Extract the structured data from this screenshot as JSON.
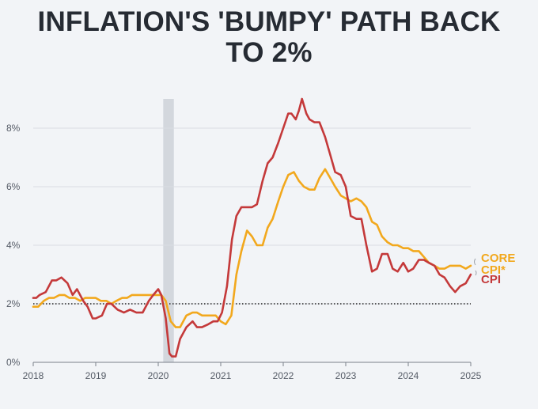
{
  "title": {
    "line1": "INFLATION'S 'BUMPY' PATH BACK",
    "line2": "TO 2%"
  },
  "chart_data": {
    "type": "line",
    "title": "INFLATION'S 'BUMPY' PATH BACK TO 2%",
    "xlabel": "",
    "ylabel": "",
    "x_ticks": [
      "2018",
      "2019",
      "2020",
      "2021",
      "2022",
      "2023",
      "2024",
      "2025"
    ],
    "x_tick_values": [
      2018,
      2019,
      2020,
      2021,
      2022,
      2023,
      2024,
      2025
    ],
    "y_ticks": [
      "0%",
      "2%",
      "4%",
      "6%",
      "8%"
    ],
    "y_tick_values": [
      0,
      2,
      4,
      6,
      8
    ],
    "xlim": [
      2018,
      2025
    ],
    "ylim": [
      0,
      9
    ],
    "reference_line": {
      "value": 2,
      "style": "dotted"
    },
    "shaded_band": {
      "x_start": 2020.08,
      "x_end": 2020.25,
      "meaning": "recession"
    },
    "colors": {
      "core": "#f2a81d",
      "cpi": "#c4393a",
      "grid": "#d9dde3",
      "band": "#d3d7dd",
      "reference": "#222222"
    },
    "series": [
      {
        "name": "CPI",
        "label": "CPI",
        "color": "#c4393a",
        "x": [
          2018.0,
          2018.05,
          2018.1,
          2018.2,
          2018.3,
          2018.37,
          2018.45,
          2018.55,
          2018.63,
          2018.7,
          2018.8,
          2018.87,
          2018.95,
          2019.0,
          2019.1,
          2019.18,
          2019.25,
          2019.35,
          2019.45,
          2019.55,
          2019.65,
          2019.75,
          2019.85,
          2019.92,
          2020.0,
          2020.05,
          2020.12,
          2020.18,
          2020.22,
          2020.28,
          2020.35,
          2020.45,
          2020.55,
          2020.62,
          2020.7,
          2020.8,
          2020.88,
          2020.95,
          2021.02,
          2021.1,
          2021.18,
          2021.25,
          2021.33,
          2021.4,
          2021.5,
          2021.58,
          2021.67,
          2021.75,
          2021.83,
          2021.92,
          2022.0,
          2022.08,
          2022.13,
          2022.2,
          2022.25,
          2022.3,
          2022.37,
          2022.42,
          2022.5,
          2022.58,
          2022.67,
          2022.75,
          2022.83,
          2022.92,
          2023.0,
          2023.08,
          2023.17,
          2023.25,
          2023.33,
          2023.42,
          2023.5,
          2023.58,
          2023.67,
          2023.75,
          2023.83,
          2023.92,
          2024.0,
          2024.08,
          2024.17,
          2024.25,
          2024.33,
          2024.42,
          2024.5,
          2024.58,
          2024.67,
          2024.75,
          2024.83,
          2024.92,
          2025.0
        ],
        "values": [
          2.2,
          2.2,
          2.3,
          2.4,
          2.8,
          2.8,
          2.9,
          2.7,
          2.3,
          2.5,
          2.1,
          1.9,
          1.5,
          1.5,
          1.6,
          2.0,
          2.0,
          1.8,
          1.7,
          1.8,
          1.7,
          1.7,
          2.1,
          2.3,
          2.5,
          2.3,
          1.5,
          0.3,
          0.2,
          0.2,
          0.8,
          1.2,
          1.4,
          1.2,
          1.2,
          1.3,
          1.4,
          1.4,
          1.7,
          2.6,
          4.2,
          5.0,
          5.3,
          5.3,
          5.3,
          5.4,
          6.2,
          6.8,
          7.0,
          7.5,
          8.0,
          8.5,
          8.5,
          8.3,
          8.6,
          9.0,
          8.5,
          8.3,
          8.2,
          8.2,
          7.7,
          7.1,
          6.5,
          6.4,
          6.0,
          5.0,
          4.9,
          4.9,
          4.0,
          3.1,
          3.2,
          3.7,
          3.7,
          3.2,
          3.1,
          3.4,
          3.1,
          3.2,
          3.5,
          3.5,
          3.4,
          3.3,
          3.0,
          2.9,
          2.6,
          2.4,
          2.6,
          2.7,
          3.0
        ]
      },
      {
        "name": "Core CPI*",
        "label_line1": "CORE",
        "label_line2": "CPI*",
        "color": "#f2a81d",
        "x": [
          2018.0,
          2018.08,
          2018.17,
          2018.25,
          2018.33,
          2018.42,
          2018.5,
          2018.58,
          2018.67,
          2018.75,
          2018.83,
          2018.92,
          2019.0,
          2019.08,
          2019.17,
          2019.25,
          2019.33,
          2019.42,
          2019.5,
          2019.58,
          2019.67,
          2019.75,
          2019.83,
          2019.92,
          2020.0,
          2020.05,
          2020.12,
          2020.2,
          2020.28,
          2020.35,
          2020.45,
          2020.55,
          2020.62,
          2020.7,
          2020.78,
          2020.85,
          2020.92,
          2021.0,
          2021.08,
          2021.17,
          2021.25,
          2021.33,
          2021.42,
          2021.5,
          2021.58,
          2021.67,
          2021.75,
          2021.83,
          2021.92,
          2022.0,
          2022.08,
          2022.17,
          2022.25,
          2022.33,
          2022.42,
          2022.5,
          2022.58,
          2022.67,
          2022.75,
          2022.83,
          2022.92,
          2023.0,
          2023.08,
          2023.17,
          2023.25,
          2023.33,
          2023.42,
          2023.5,
          2023.58,
          2023.67,
          2023.75,
          2023.83,
          2023.92,
          2024.0,
          2024.08,
          2024.17,
          2024.25,
          2024.33,
          2024.42,
          2024.5,
          2024.58,
          2024.67,
          2024.75,
          2024.83,
          2024.92,
          2025.0
        ],
        "values": [
          1.9,
          1.9,
          2.1,
          2.2,
          2.2,
          2.3,
          2.3,
          2.2,
          2.2,
          2.1,
          2.2,
          2.2,
          2.2,
          2.1,
          2.1,
          2.0,
          2.1,
          2.2,
          2.2,
          2.3,
          2.3,
          2.3,
          2.3,
          2.3,
          2.3,
          2.3,
          2.1,
          1.4,
          1.2,
          1.2,
          1.6,
          1.7,
          1.7,
          1.6,
          1.6,
          1.6,
          1.6,
          1.4,
          1.3,
          1.6,
          3.0,
          3.8,
          4.5,
          4.3,
          4.0,
          4.0,
          4.6,
          4.9,
          5.5,
          6.0,
          6.4,
          6.5,
          6.2,
          6.0,
          5.9,
          5.9,
          6.3,
          6.6,
          6.3,
          6.0,
          5.7,
          5.6,
          5.5,
          5.6,
          5.5,
          5.3,
          4.8,
          4.7,
          4.3,
          4.1,
          4.0,
          4.0,
          3.9,
          3.9,
          3.8,
          3.8,
          3.6,
          3.4,
          3.3,
          3.2,
          3.2,
          3.3,
          3.3,
          3.3,
          3.2,
          3.3
        ]
      }
    ]
  }
}
